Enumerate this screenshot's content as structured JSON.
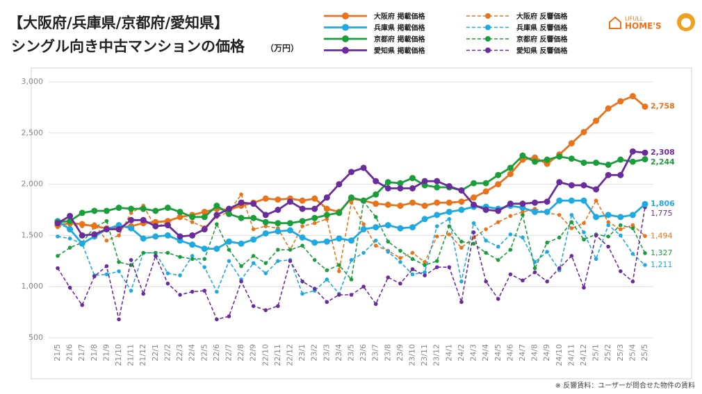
{
  "chart_data": {
    "type": "line",
    "title": "【大阪府/兵庫県/京都府/愛知県】",
    "subtitle": "シングル向き中古マンションの価格",
    "unit": "（万円）",
    "note": "※ 反響賃料：ユーザーが問合せた物件の賃料",
    "brand": {
      "top": "LIFULL",
      "bottom": "HOME'S"
    },
    "categories": [
      "21/5",
      "21/6",
      "21/7",
      "21/8",
      "21/9",
      "21/10",
      "21/11",
      "21/12",
      "22/1",
      "22/2",
      "22/3",
      "22/4",
      "22/5",
      "22/6",
      "22/7",
      "22/8",
      "22/9",
      "22/10",
      "22/11",
      "22/12",
      "23/1",
      "23/2",
      "23/3",
      "23/4",
      "23/5",
      "23/6",
      "23/7",
      "23/8",
      "23/9",
      "23/10",
      "23/11",
      "23/12",
      "24/1",
      "24/2",
      "24/3",
      "24/4",
      "24/5",
      "24/6",
      "24/7",
      "24/8",
      "24/9",
      "24/10",
      "24/11",
      "24/12",
      "25/1",
      "25/2",
      "25/3",
      "25/4",
      "25/5"
    ],
    "ylim": [
      500,
      3000
    ],
    "yticks": [
      500,
      {
        "value": 1000,
        "label": "1,000"
      },
      {
        "value": 1500,
        "label": "1,500"
      },
      {
        "value": 2000,
        "label": "2,000"
      },
      {
        "value": 2500,
        "label": "2,500"
      },
      {
        "value": 3000,
        "label": "3,000"
      }
    ],
    "grid": true,
    "series": [
      {
        "name": "大阪府 掲載価格",
        "color": "#e8731a",
        "dashed": false,
        "values": [
          1600,
          1620,
          1610,
          1590,
          1570,
          1580,
          1590,
          1620,
          1630,
          1640,
          1680,
          1700,
          1730,
          1760,
          1750,
          1790,
          1820,
          1860,
          1850,
          1860,
          1840,
          1860,
          1760,
          1730,
          1860,
          1840,
          1810,
          1800,
          1790,
          1820,
          1790,
          1820,
          1820,
          1830,
          1870,
          1930,
          2000,
          2100,
          2240,
          2260,
          2200,
          2290,
          2400,
          2510,
          2620,
          2740,
          2810,
          2860,
          2758
        ],
        "value_labels": [
          null,
          null,
          null,
          null,
          null,
          null,
          null,
          null,
          null,
          null,
          null,
          null,
          null,
          null,
          null,
          null,
          null,
          null,
          null,
          null,
          null,
          null,
          null,
          null,
          null,
          null,
          null,
          null,
          null,
          null,
          null,
          null,
          null,
          null,
          null,
          null,
          null,
          null,
          null,
          null,
          null,
          null,
          null,
          null,
          null,
          null,
          null,
          null,
          "2,758"
        ]
      },
      {
        "name": "兵庫県 掲載価格",
        "color": "#1ea9e1",
        "dashed": false,
        "values": [
          1640,
          1560,
          1420,
          1490,
          1560,
          1600,
          1570,
          1470,
          1490,
          1500,
          1450,
          1410,
          1370,
          1370,
          1440,
          1420,
          1460,
          1520,
          1540,
          1550,
          1480,
          1430,
          1440,
          1470,
          1450,
          1560,
          1580,
          1600,
          1570,
          1580,
          1660,
          1700,
          1730,
          1750,
          1780,
          1780,
          1760,
          1790,
          1770,
          1730,
          1730,
          1840,
          1840,
          1840,
          1680,
          1700,
          1680,
          1700,
          1806
        ],
        "value_labels": [
          null,
          null,
          null,
          null,
          null,
          null,
          null,
          null,
          null,
          null,
          null,
          null,
          null,
          null,
          null,
          null,
          null,
          null,
          null,
          null,
          null,
          null,
          null,
          null,
          null,
          null,
          null,
          null,
          null,
          null,
          null,
          null,
          null,
          null,
          null,
          null,
          null,
          null,
          null,
          null,
          null,
          null,
          null,
          null,
          null,
          null,
          null,
          null,
          "1,806"
        ]
      },
      {
        "name": "京都府 掲載価格",
        "color": "#1a9e3c",
        "dashed": false,
        "values": [
          1630,
          1640,
          1720,
          1740,
          1740,
          1770,
          1760,
          1760,
          1740,
          1770,
          1730,
          1680,
          1680,
          1790,
          1710,
          1670,
          1670,
          1630,
          1620,
          1620,
          1640,
          1670,
          1700,
          1720,
          1870,
          1840,
          1900,
          2020,
          2010,
          2060,
          1990,
          1970,
          1970,
          1940,
          2010,
          2010,
          2090,
          2160,
          2280,
          2220,
          2240,
          2270,
          2250,
          2210,
          2210,
          2190,
          2240,
          2220,
          2244
        ],
        "value_labels": [
          null,
          null,
          null,
          null,
          null,
          null,
          null,
          null,
          null,
          null,
          null,
          null,
          null,
          null,
          null,
          null,
          null,
          null,
          null,
          null,
          null,
          null,
          null,
          null,
          null,
          null,
          null,
          null,
          null,
          null,
          null,
          null,
          null,
          null,
          null,
          null,
          null,
          null,
          null,
          null,
          null,
          null,
          null,
          null,
          null,
          null,
          null,
          null,
          "2,244"
        ]
      },
      {
        "name": "愛知県 掲載価格",
        "color": "#6a2c9a",
        "dashed": false,
        "values": [
          1620,
          1690,
          1500,
          1510,
          1560,
          1560,
          1650,
          1650,
          1590,
          1600,
          1490,
          1500,
          1560,
          1700,
          1760,
          1820,
          1810,
          1700,
          1750,
          1830,
          1760,
          1760,
          1870,
          2000,
          2120,
          2160,
          2030,
          1960,
          1960,
          1960,
          2030,
          2030,
          1980,
          1940,
          1800,
          1750,
          1740,
          1810,
          1810,
          1820,
          1830,
          2020,
          1990,
          1990,
          1950,
          2090,
          2090,
          2320,
          2308
        ],
        "value_labels": [
          null,
          null,
          null,
          null,
          null,
          null,
          null,
          null,
          null,
          null,
          null,
          null,
          null,
          null,
          null,
          null,
          null,
          null,
          null,
          null,
          null,
          null,
          null,
          null,
          null,
          null,
          null,
          null,
          null,
          null,
          null,
          null,
          null,
          null,
          null,
          null,
          null,
          null,
          null,
          null,
          null,
          null,
          null,
          null,
          null,
          null,
          null,
          null,
          "2,308"
        ]
      },
      {
        "name": "大阪府 反響価格",
        "color": "#e8731a",
        "dashed": true,
        "values": [
          1580,
          1600,
          1590,
          1610,
          1450,
          1500,
          1720,
          1790,
          1580,
          1630,
          1680,
          1630,
          1580,
          1680,
          1730,
          1900,
          1560,
          1590,
          1570,
          1360,
          1590,
          1620,
          1660,
          1150,
          1820,
          1610,
          1400,
          1350,
          1280,
          1330,
          1240,
          1490,
          1510,
          1380,
          1480,
          1560,
          1630,
          1690,
          1730,
          1760,
          1720,
          1700,
          1570,
          1620,
          1840,
          1630,
          1560,
          1600,
          1494
        ],
        "value_labels": [
          null,
          null,
          null,
          null,
          null,
          null,
          null,
          null,
          null,
          null,
          null,
          null,
          null,
          null,
          null,
          null,
          null,
          null,
          null,
          null,
          null,
          null,
          null,
          null,
          null,
          null,
          null,
          null,
          null,
          null,
          null,
          null,
          null,
          null,
          null,
          null,
          null,
          null,
          null,
          null,
          null,
          null,
          null,
          null,
          null,
          null,
          null,
          null,
          "1,494"
        ]
      },
      {
        "name": "兵庫県 反響価格",
        "color": "#1ea9e1",
        "dashed": true,
        "values": [
          1490,
          1470,
          1420,
          1110,
          1120,
          1150,
          960,
          1330,
          1330,
          1130,
          1110,
          1300,
          1190,
          950,
          1250,
          1070,
          1230,
          1130,
          1250,
          1260,
          930,
          960,
          1070,
          930,
          1260,
          1330,
          1450,
          1340,
          1240,
          1120,
          1140,
          1590,
          1660,
          1050,
          1620,
          1450,
          1390,
          1510,
          1480,
          1240,
          1340,
          1160,
          1700,
          1530,
          1270,
          1600,
          1500,
          1320,
          1211
        ],
        "value_labels": [
          null,
          null,
          null,
          null,
          null,
          null,
          null,
          null,
          null,
          null,
          null,
          null,
          null,
          null,
          null,
          null,
          null,
          null,
          null,
          null,
          null,
          null,
          null,
          null,
          null,
          null,
          null,
          null,
          null,
          null,
          null,
          null,
          null,
          null,
          null,
          null,
          null,
          null,
          null,
          null,
          null,
          null,
          null,
          null,
          null,
          null,
          null,
          null,
          "1,211"
        ]
      },
      {
        "name": "京都府 反響価格",
        "color": "#1a9e3c",
        "dashed": true,
        "values": [
          1300,
          1380,
          1430,
          1580,
          1640,
          1240,
          1210,
          1330,
          1330,
          1330,
          1290,
          1270,
          1270,
          1610,
          1360,
          1200,
          1300,
          1230,
          1360,
          1360,
          1400,
          1260,
          1160,
          1210,
          1070,
          1830,
          1680,
          1440,
          1350,
          1270,
          1210,
          1250,
          1590,
          1440,
          1420,
          1330,
          1260,
          1360,
          1700,
          1180,
          1430,
          1480,
          1630,
          1460,
          1510,
          1490,
          1600,
          1570,
          1327
        ],
        "value_labels": [
          null,
          null,
          null,
          null,
          null,
          null,
          null,
          null,
          null,
          null,
          null,
          null,
          null,
          null,
          null,
          null,
          null,
          null,
          null,
          null,
          null,
          null,
          null,
          null,
          null,
          null,
          null,
          null,
          null,
          null,
          null,
          null,
          null,
          null,
          null,
          null,
          null,
          null,
          null,
          null,
          null,
          null,
          null,
          null,
          null,
          null,
          null,
          null,
          "1,327"
        ]
      },
      {
        "name": "愛知県 反響価格",
        "color": "#6a2c9a",
        "dashed": true,
        "values": [
          1180,
          990,
          820,
          1100,
          1200,
          680,
          1260,
          930,
          1300,
          1030,
          920,
          950,
          960,
          680,
          710,
          1050,
          810,
          770,
          810,
          1250,
          1050,
          980,
          850,
          920,
          920,
          1000,
          830,
          1090,
          1030,
          1170,
          1110,
          1190,
          1190,
          850,
          1530,
          1050,
          880,
          1120,
          1060,
          1140,
          1050,
          1180,
          1300,
          990,
          1500,
          1390,
          1150,
          1050,
          1775
        ],
        "value_labels": [
          null,
          null,
          null,
          null,
          null,
          null,
          null,
          null,
          null,
          null,
          null,
          null,
          null,
          null,
          null,
          null,
          null,
          null,
          null,
          null,
          null,
          null,
          null,
          null,
          null,
          null,
          null,
          null,
          null,
          null,
          null,
          null,
          null,
          null,
          null,
          null,
          null,
          null,
          null,
          null,
          null,
          null,
          null,
          null,
          null,
          null,
          null,
          null,
          "1,775"
        ]
      }
    ]
  }
}
